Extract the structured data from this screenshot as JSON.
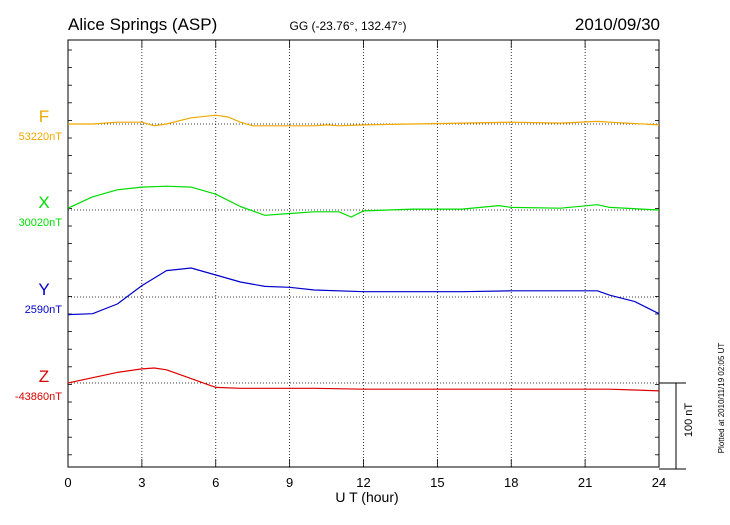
{
  "header": {
    "station": "Alice Springs (ASP)",
    "coords": "GG (-23.76°, 132.47°)",
    "date": "2010/09/30"
  },
  "xaxis": {
    "label": "U T (hour)",
    "ticks": [
      "0",
      "3",
      "6",
      "9",
      "12",
      "15",
      "18",
      "21",
      "24"
    ]
  },
  "scale_bar_label": "100 nT",
  "plotted_note": "Plotted at 2010/11/19 02:05 UT",
  "colors": {
    "F": "#f0a800",
    "X": "#00dd00",
    "Y": "#0000cc",
    "Z": "#dd0000"
  },
  "chart_data": {
    "type": "line",
    "title": "Alice Springs (ASP)",
    "subtitle": "GG (-23.76°, 132.47°)",
    "date": "2010/09/30",
    "xlabel": "U T (hour)",
    "xlim": [
      0,
      24
    ],
    "xticks": [
      0,
      3,
      6,
      9,
      12,
      15,
      18,
      21,
      24
    ],
    "units": "nT",
    "scale_bar_nT": 100,
    "grid": true,
    "series": [
      {
        "name": "F",
        "baseline_label": "53220nT",
        "x": [
          0,
          1,
          2,
          3,
          3.5,
          4,
          5,
          6,
          6.5,
          7,
          7.5,
          8,
          9,
          10,
          10.5,
          11,
          12,
          14,
          16,
          18,
          20,
          21.5,
          22,
          24
        ],
        "values": [
          0,
          0,
          2,
          2,
          -2,
          0,
          7,
          10,
          8,
          2,
          -2,
          -2,
          -2,
          -2,
          -1,
          -2,
          -1,
          0,
          1,
          2,
          1,
          3,
          2,
          -1
        ]
      },
      {
        "name": "X",
        "baseline_label": "30020nT",
        "x": [
          0,
          1,
          2,
          3,
          4,
          5,
          6,
          7,
          8,
          9,
          10,
          11,
          11.5,
          12,
          14,
          16,
          17.5,
          18,
          20,
          21.5,
          22,
          24
        ],
        "values": [
          2,
          15,
          23,
          26,
          27,
          26,
          18,
          4,
          -6,
          -4,
          -2,
          -2,
          -8,
          -1,
          1,
          1,
          5,
          3,
          2,
          6,
          3,
          0
        ]
      },
      {
        "name": "Y",
        "baseline_label": "2590nT",
        "x": [
          0,
          1,
          2,
          3,
          4,
          5,
          6,
          7,
          8,
          9,
          10,
          12,
          14,
          16,
          18,
          20,
          21,
          21.5,
          22,
          23,
          24
        ],
        "values": [
          -20,
          -19,
          -8,
          13,
          30,
          33,
          25,
          17,
          12,
          11,
          8,
          6,
          6,
          6,
          7,
          7,
          7,
          7,
          2,
          -5,
          -19
        ]
      },
      {
        "name": "Z",
        "baseline_label": "-43860nT",
        "x": [
          0,
          1,
          2,
          3,
          3.5,
          4,
          5,
          6,
          7,
          8,
          10,
          12,
          14,
          16,
          18,
          20,
          22,
          23,
          24
        ],
        "values": [
          0,
          6,
          12,
          16,
          17,
          15,
          5,
          -5,
          -6,
          -6,
          -6,
          -7,
          -7,
          -7,
          -7,
          -7,
          -7,
          -8,
          -9
        ]
      }
    ]
  }
}
